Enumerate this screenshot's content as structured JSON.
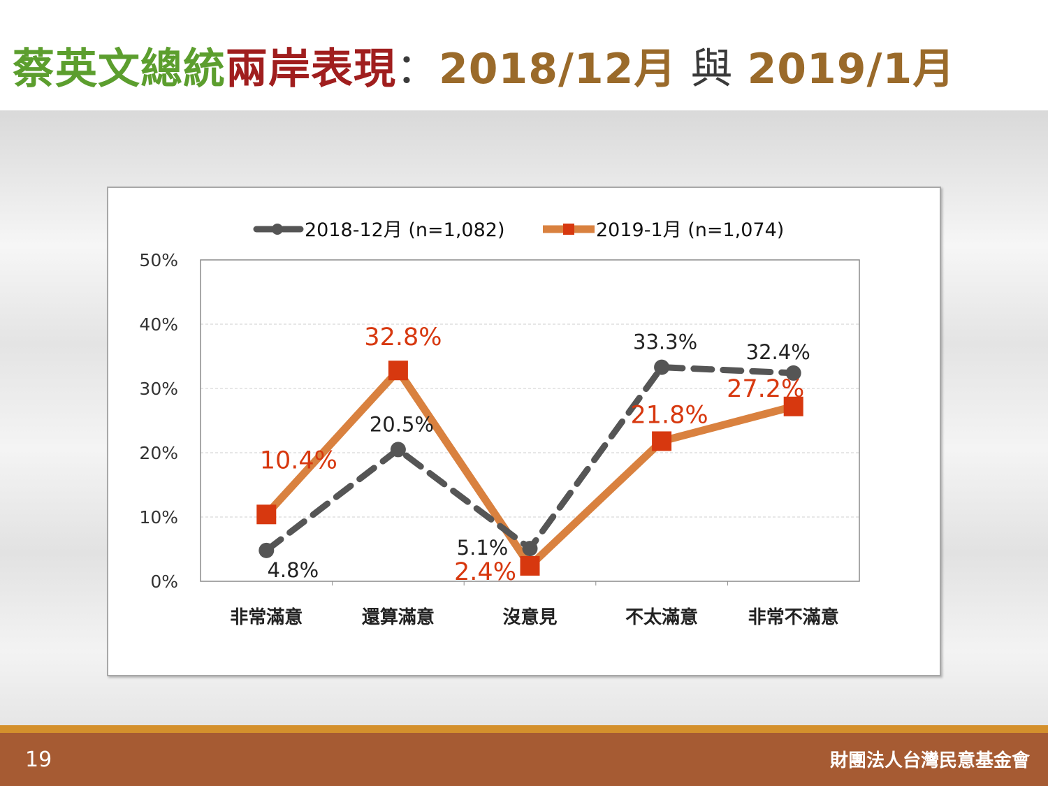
{
  "header": {
    "title_part1": "蔡英文總統",
    "title_part2": "兩岸表現",
    "title_sep": "：",
    "title_date1": "2018/12月",
    "title_and": " 與 ",
    "title_date2": "2019/1月"
  },
  "footer": {
    "page_number": "19",
    "organization": "財團法人台灣民意基金會"
  },
  "colors": {
    "series1": "#555555",
    "series1_label": "#222222",
    "series2_line": "#d9813f",
    "series2_marker": "#d7380f",
    "series2_label": "#d7380f"
  },
  "chart_data": {
    "type": "line",
    "categories": [
      "非常滿意",
      "還算滿意",
      "沒意見",
      "不太滿意",
      "非常不滿意"
    ],
    "ylim": [
      0,
      50
    ],
    "yticks": [
      "0%",
      "10%",
      "20%",
      "30%",
      "40%",
      "50%"
    ],
    "grid": true,
    "legend_position": "top",
    "series": [
      {
        "name": "2018-12月 (n=1,082)",
        "values": [
          4.8,
          20.5,
          5.1,
          33.3,
          32.4
        ],
        "labels": [
          "4.8%",
          "20.5%",
          "5.1%",
          "33.3%",
          "32.4%"
        ],
        "style": "dashed",
        "marker": "circle"
      },
      {
        "name": "2019-1月 (n=1,074)",
        "values": [
          10.4,
          32.8,
          2.4,
          21.8,
          27.2
        ],
        "labels": [
          "10.4%",
          "32.8%",
          "2.4%",
          "21.8%",
          "27.2%"
        ],
        "style": "solid",
        "marker": "square"
      }
    ]
  }
}
